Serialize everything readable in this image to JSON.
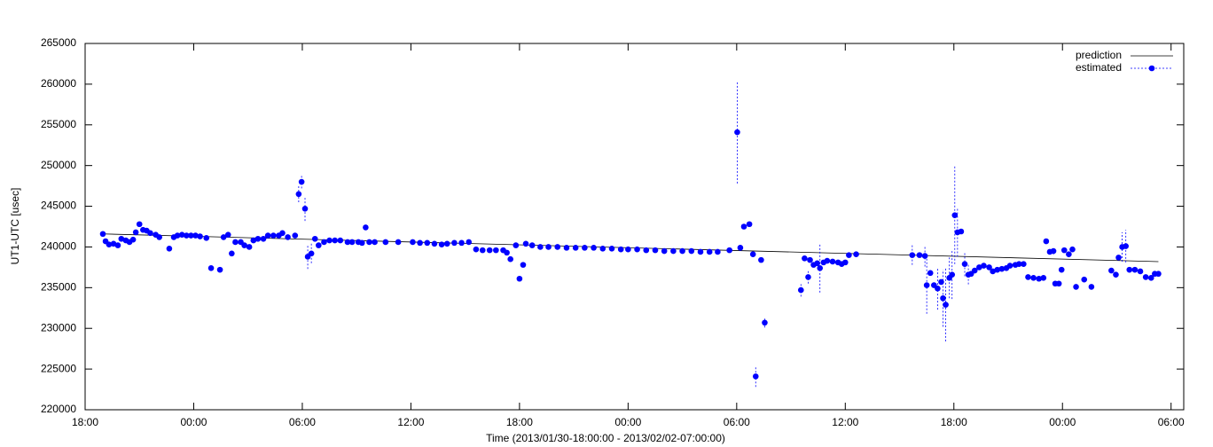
{
  "chart_data": {
    "type": "scatter",
    "xlabel": "Time (2013/01/30-18:00:00 - 2013/02/02-07:00:00)",
    "ylabel": "UT1-UTC [usec]",
    "xlim": [
      0,
      60.7
    ],
    "ylim": [
      220000,
      265000
    ],
    "xticks": [
      {
        "value": 0,
        "label": "18:00"
      },
      {
        "value": 6,
        "label": "00:00"
      },
      {
        "value": 12,
        "label": "06:00"
      },
      {
        "value": 18,
        "label": "12:00"
      },
      {
        "value": 24,
        "label": "18:00"
      },
      {
        "value": 30,
        "label": "00:00"
      },
      {
        "value": 36,
        "label": "06:00"
      },
      {
        "value": 42,
        "label": "12:00"
      },
      {
        "value": 48,
        "label": "18:00"
      },
      {
        "value": 54,
        "label": "00:00"
      },
      {
        "value": 60,
        "label": "06:00"
      }
    ],
    "yticks": [
      220000,
      225000,
      230000,
      235000,
      240000,
      245000,
      250000,
      255000,
      260000,
      265000
    ],
    "legend": "top right",
    "series": [
      {
        "name": "prediction",
        "color": "#000000",
        "kind": "line",
        "x": [
          0.98,
          59.3
        ],
        "values": [
          241600,
          238200
        ]
      },
      {
        "name": "estimated",
        "color": "#0000ff",
        "kind": "points",
        "x": [
          0.98,
          1.13,
          1.32,
          1.57,
          1.81,
          2.0,
          2.25,
          2.45,
          2.65,
          2.8,
          3.0,
          3.2,
          3.4,
          3.6,
          3.9,
          4.1,
          4.65,
          4.9,
          5.1,
          5.35,
          5.6,
          5.85,
          6.1,
          6.35,
          6.7,
          6.96,
          7.45,
          7.65,
          7.9,
          8.1,
          8.3,
          8.6,
          8.8,
          9.07,
          9.3,
          9.55,
          9.85,
          10.1,
          10.4,
          10.7,
          10.9,
          11.2,
          11.6,
          11.8,
          11.96,
          12.15,
          12.3,
          12.5,
          12.7,
          12.9,
          13.2,
          13.5,
          13.8,
          14.1,
          14.5,
          14.75,
          15.1,
          15.3,
          15.5,
          15.7,
          16.0,
          16.6,
          17.3,
          18.1,
          18.5,
          18.9,
          19.3,
          19.7,
          20.0,
          20.4,
          20.8,
          21.2,
          21.6,
          21.96,
          22.35,
          22.7,
          23.1,
          23.3,
          23.5,
          23.8,
          24.0,
          24.2,
          24.35,
          24.7,
          25.15,
          25.6,
          26.1,
          26.6,
          27.1,
          27.6,
          28.1,
          28.6,
          29.1,
          29.6,
          30.0,
          30.5,
          31.0,
          31.5,
          32.0,
          32.5,
          33.0,
          33.5,
          34.0,
          34.5,
          34.95,
          35.6,
          36.03,
          36.2,
          36.4,
          36.7,
          36.9,
          37.05,
          37.35,
          37.55,
          39.55,
          39.75,
          39.95,
          40.05,
          40.25,
          40.45,
          40.6,
          40.8,
          41.0,
          41.3,
          41.6,
          41.8,
          42.0,
          42.2,
          42.6,
          45.7,
          46.1,
          46.4,
          46.5,
          46.7,
          46.9,
          47.1,
          47.3,
          47.4,
          47.55,
          47.75,
          47.9,
          48.05,
          48.2,
          48.4,
          48.6,
          48.8,
          48.95,
          49.15,
          49.4,
          49.65,
          49.95,
          50.15,
          50.4,
          50.65,
          50.9,
          51.1,
          51.4,
          51.6,
          51.85,
          52.1,
          52.4,
          52.7,
          52.95,
          53.1,
          53.3,
          53.5,
          53.6,
          53.8,
          53.95,
          54.1,
          54.35,
          54.55,
          54.75,
          55.2,
          55.6,
          56.7,
          56.95,
          57.1,
          57.3,
          57.5,
          57.7,
          58.0,
          58.3,
          58.6,
          58.9,
          59.1,
          59.3
        ],
        "values": [
          241600,
          240700,
          240300,
          240400,
          240200,
          241000,
          240800,
          240600,
          240900,
          241800,
          242800,
          242100,
          242000,
          241700,
          241500,
          241200,
          239800,
          241200,
          241400,
          241500,
          241400,
          241400,
          241400,
          241300,
          241100,
          237400,
          237200,
          241200,
          241500,
          239200,
          240600,
          240600,
          240200,
          240000,
          240800,
          241000,
          241000,
          241400,
          241400,
          241400,
          241700,
          241200,
          241400,
          246500,
          248000,
          244700,
          238800,
          239200,
          241000,
          240200,
          240600,
          240800,
          240800,
          240800,
          240600,
          240600,
          240600,
          240500,
          242400,
          240600,
          240600,
          240600,
          240600,
          240600,
          240500,
          240500,
          240400,
          240300,
          240400,
          240500,
          240500,
          240600,
          239700,
          239600,
          239600,
          239600,
          239600,
          239300,
          238500,
          240200,
          236100,
          237800,
          240400,
          240200,
          240000,
          240000,
          240000,
          239900,
          239900,
          239900,
          239900,
          239800,
          239800,
          239700,
          239700,
          239700,
          239600,
          239600,
          239500,
          239500,
          239500,
          239500,
          239400,
          239400,
          239400,
          239600,
          254100,
          239900,
          242500,
          242800,
          239100,
          224100,
          238400,
          230700,
          234700,
          238600,
          236300,
          238400,
          237800,
          238000,
          237400,
          238100,
          238300,
          238200,
          238100,
          237900,
          238100,
          239000,
          239100,
          239000,
          239000,
          238900,
          235300,
          236800,
          235300,
          234900,
          235700,
          233700,
          232900,
          236200,
          236600,
          243900,
          241800,
          241900,
          237900,
          236600,
          236700,
          237100,
          237500,
          237700,
          237500,
          237000,
          237200,
          237300,
          237400,
          237700,
          237800,
          237900,
          237900,
          236300,
          236200,
          236100,
          236200,
          240700,
          239400,
          239500,
          235500,
          235500,
          237200,
          239600,
          239100,
          239700,
          235100,
          236000,
          235100,
          237100,
          236600,
          238700,
          240000,
          240100,
          237200,
          237200,
          237000,
          236300,
          236200,
          236700,
          236700
        ],
        "errors": [
          200,
          200,
          200,
          200,
          200,
          200,
          200,
          200,
          200,
          200,
          300,
          200,
          200,
          200,
          200,
          200,
          300,
          200,
          200,
          200,
          200,
          200,
          200,
          200,
          200,
          300,
          200,
          200,
          200,
          200,
          200,
          200,
          200,
          200,
          200,
          200,
          200,
          200,
          200,
          200,
          200,
          200,
          200,
          1000,
          800,
          1500,
          1500,
          1200,
          200,
          200,
          200,
          200,
          200,
          200,
          200,
          200,
          200,
          200,
          300,
          200,
          200,
          200,
          200,
          200,
          200,
          200,
          200,
          200,
          200,
          200,
          200,
          200,
          200,
          200,
          200,
          200,
          200,
          200,
          300,
          200,
          300,
          300,
          200,
          200,
          200,
          200,
          200,
          200,
          200,
          200,
          200,
          200,
          200,
          200,
          200,
          200,
          200,
          200,
          200,
          200,
          200,
          200,
          200,
          200,
          200,
          200,
          6300,
          200,
          300,
          300,
          300,
          1300,
          300,
          600,
          800,
          300,
          800,
          300,
          300,
          300,
          3000,
          300,
          300,
          300,
          300,
          300,
          300,
          300,
          300,
          1200,
          300,
          1300,
          3500,
          300,
          300,
          2600,
          300,
          3500,
          4500,
          2500,
          3000,
          6000,
          3000,
          300,
          1500,
          1200,
          300,
          300,
          300,
          300,
          300,
          300,
          300,
          300,
          300,
          300,
          300,
          300,
          300,
          300,
          300,
          300,
          300,
          300,
          300,
          400,
          300,
          300,
          300,
          300,
          300,
          300,
          300,
          300,
          300,
          300,
          300,
          300,
          1800,
          2000,
          300,
          300,
          300,
          300,
          300,
          300,
          300
        ]
      }
    ]
  }
}
